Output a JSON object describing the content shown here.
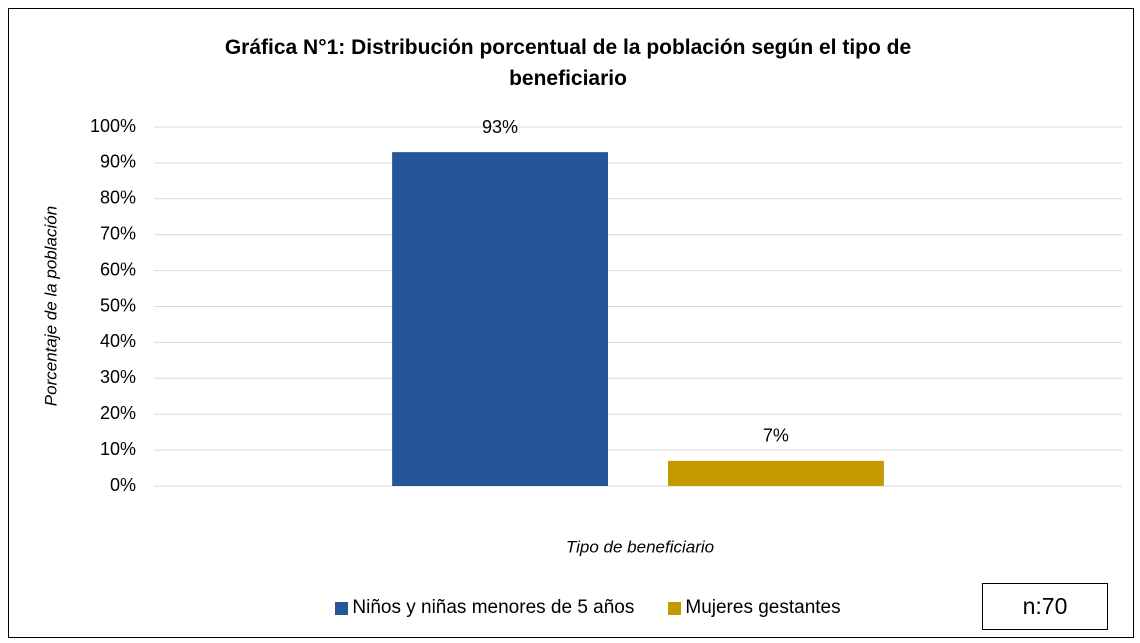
{
  "chart_data": {
    "type": "bar",
    "title": "Gráfica N°1: Distribución porcentual de la población según el tipo de beneficiario",
    "y_label": "Porcentaje de la población",
    "x_label": "Tipo de beneficiario",
    "annotation": "n:70",
    "categories": [
      null
    ],
    "series": [
      {
        "name": "Niños y niñas menores de 5 años",
        "color": "#255697",
        "values": [
          93
        ],
        "value_labels": [
          "93%"
        ]
      },
      {
        "name": "Mujeres gestantes",
        "color": "#c49a00",
        "values": [
          7
        ],
        "value_labels": [
          "7%"
        ]
      }
    ],
    "ylim": [
      0,
      100
    ],
    "yticks": [
      {
        "value": 0,
        "label": "0%"
      },
      {
        "value": 10,
        "label": "10%"
      },
      {
        "value": 20,
        "label": "20%"
      },
      {
        "value": 30,
        "label": "30%"
      },
      {
        "value": 40,
        "label": "40%"
      },
      {
        "value": 50,
        "label": "50%"
      },
      {
        "value": 60,
        "label": "60%"
      },
      {
        "value": 70,
        "label": "70%"
      },
      {
        "value": 80,
        "label": "80%"
      },
      {
        "value": 90,
        "label": "90%"
      },
      {
        "value": 100,
        "label": "100%"
      }
    ],
    "grid": true,
    "legend": "bottom"
  }
}
